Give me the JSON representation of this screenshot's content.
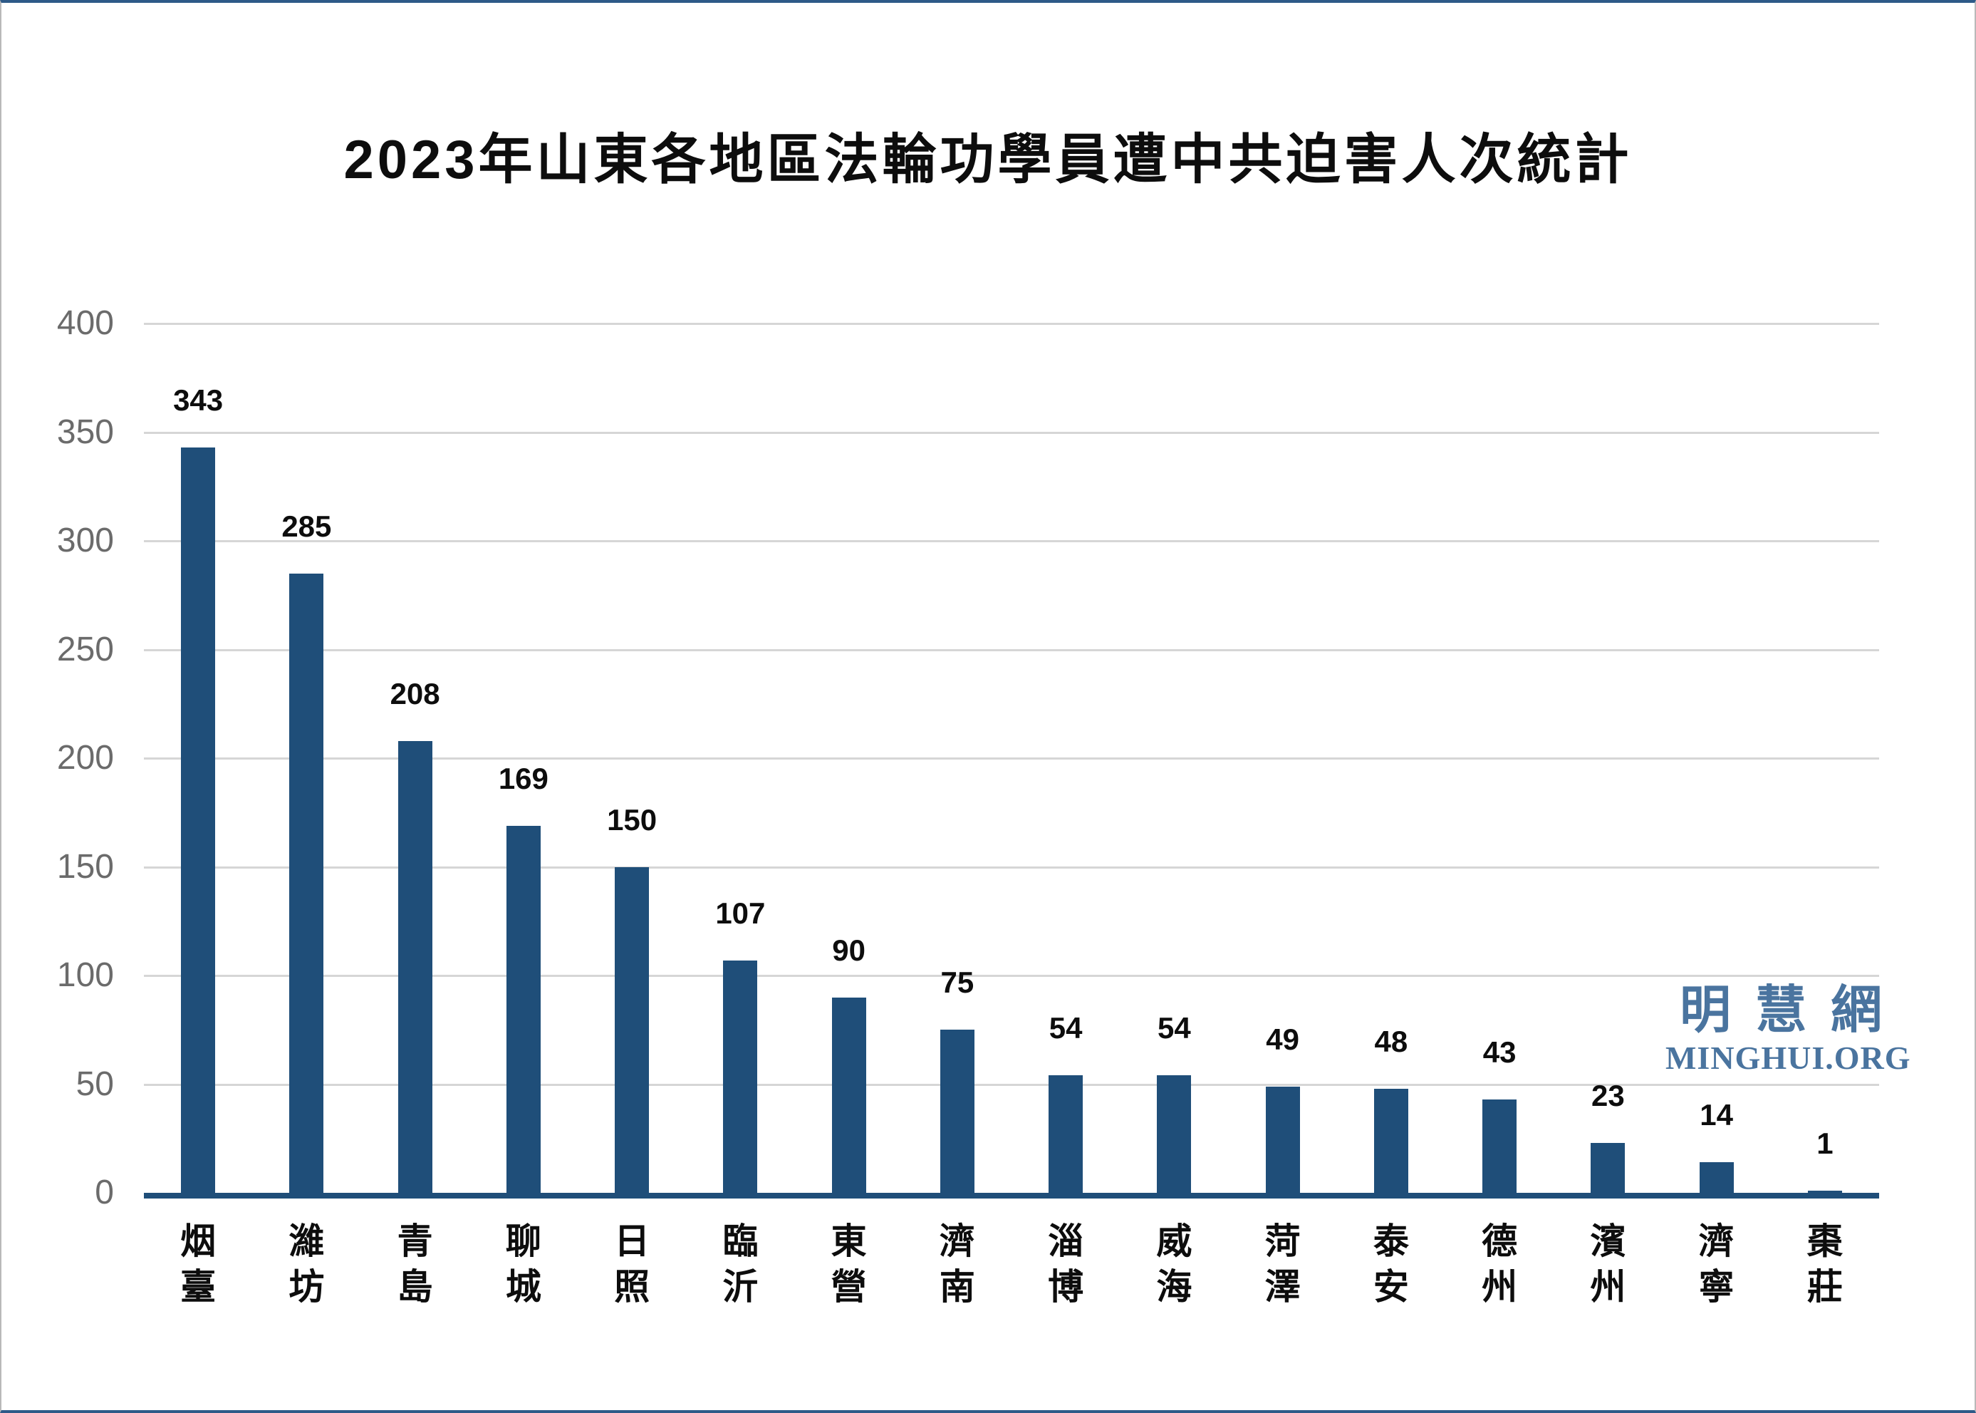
{
  "title": "2023年山東各地區法輪功學員遭中共迫害人次統計",
  "watermark": {
    "cjk": "明慧網",
    "latin": "MINGHUI.ORG"
  },
  "colors": {
    "bar": "#1f4e79",
    "axis_line": "#1f4e79",
    "gridline": "#d6d6d6",
    "tick_text": "#6b6b6b",
    "label_text": "#0d0d0d",
    "watermark": "#4a749f",
    "frame_top_bottom": "#2e5a88",
    "frame_sides": "#b9b9b9"
  },
  "chart_data": {
    "type": "bar",
    "title": "2023年山東各地區法輪功學員遭中共迫害人次統計",
    "categories": [
      "烟臺",
      "濰坊",
      "青島",
      "聊城",
      "日照",
      "臨沂",
      "東營",
      "濟南",
      "淄博",
      "威海",
      "菏澤",
      "泰安",
      "德州",
      "濱州",
      "濟寧",
      "棗莊"
    ],
    "values": [
      343,
      285,
      208,
      169,
      150,
      107,
      90,
      75,
      54,
      54,
      49,
      48,
      43,
      23,
      14,
      1
    ],
    "xlabel": "",
    "ylabel": "",
    "ylim": [
      0,
      400
    ],
    "yticks": [
      0,
      50,
      100,
      150,
      200,
      250,
      300,
      350,
      400
    ],
    "grid": true,
    "legend": false,
    "value_labels_shown": true,
    "category_label_orientation": "vertical"
  }
}
